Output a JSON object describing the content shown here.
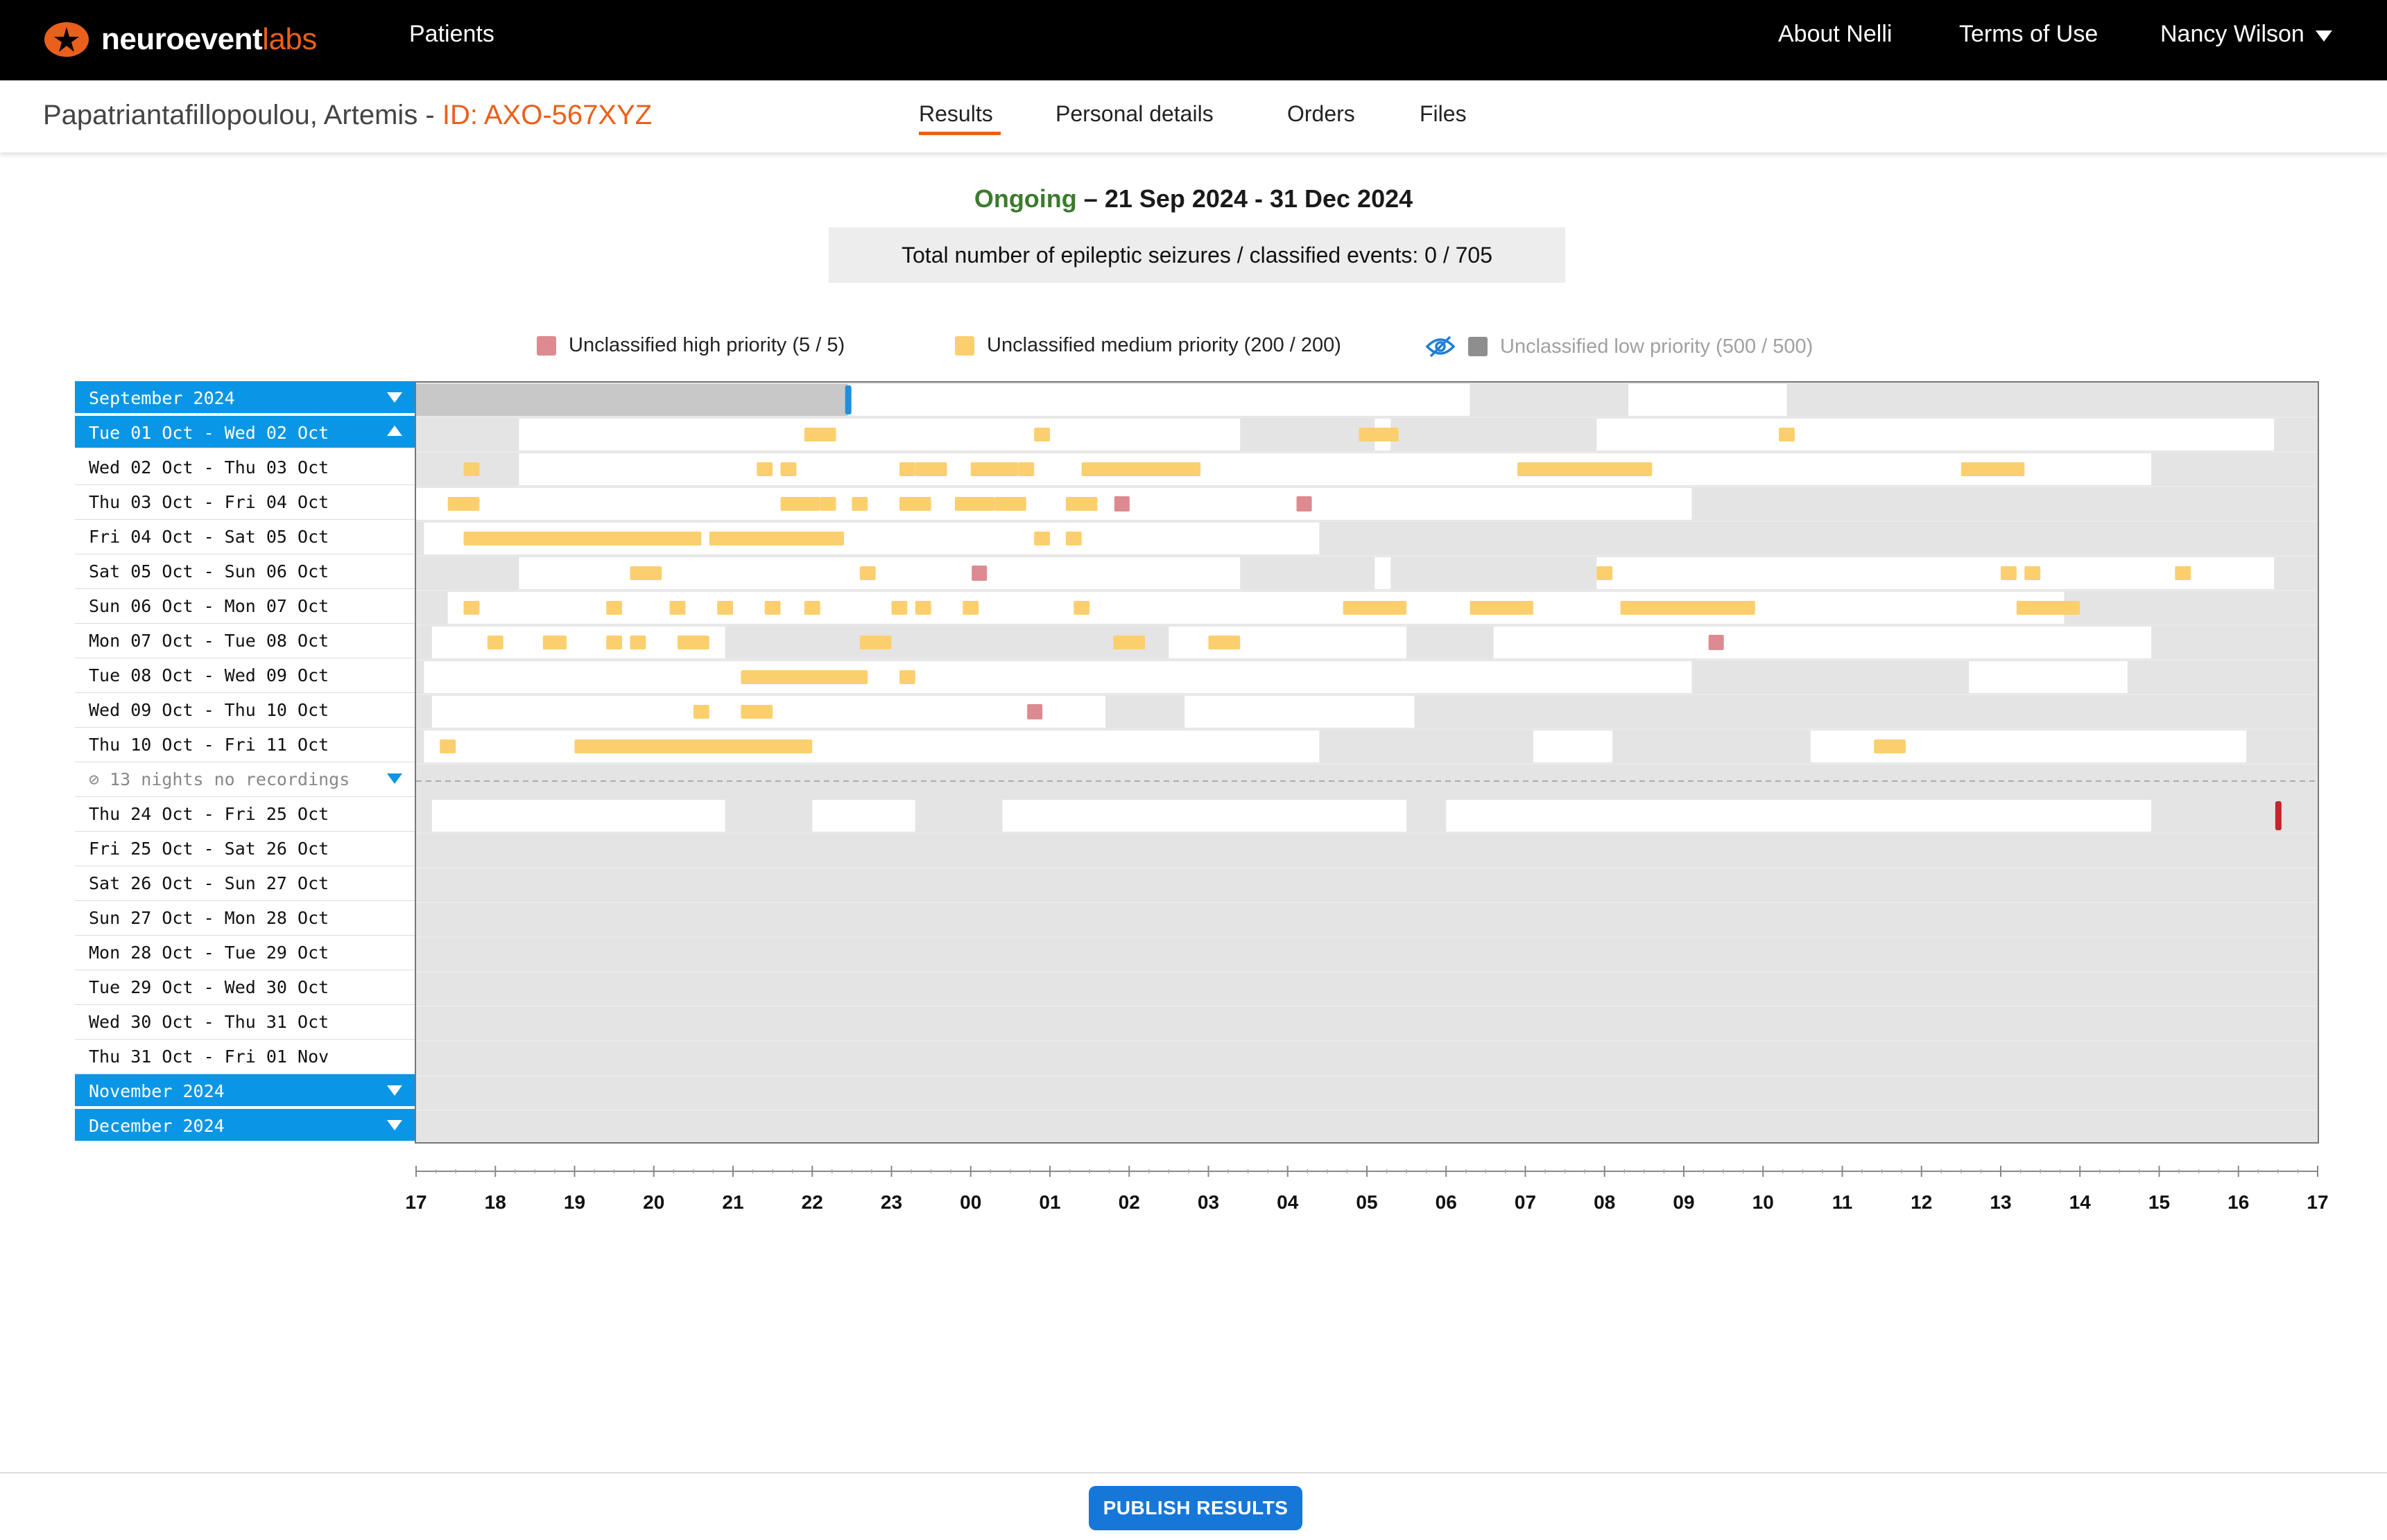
{
  "app": {
    "logo_main": "neuroevent",
    "logo_accent": "labs",
    "nav": {
      "patients": "Patients",
      "about": "About Nelli",
      "terms": "Terms of Use",
      "user": "Nancy Wilson"
    }
  },
  "patient": {
    "name": "Papatriantafillopoulou, Artemis - ",
    "id_label": "ID: AXO-567XYZ"
  },
  "tabs": {
    "results": "Results",
    "personal": "Personal details",
    "orders": "Orders",
    "files": "Files",
    "active": "Results"
  },
  "summary": {
    "status": "Ongoing",
    "date_range": " – 21 Sep 2024 - 31 Dec 2024",
    "totals": "Total number of epileptic seizures / classified events:  0 / 705"
  },
  "legend": {
    "high": "Unclassified high priority (5 / 5)",
    "medium": "Unclassified medium priority (200 / 200)",
    "low": "Unclassified low priority (500 / 500)",
    "low_hidden": true,
    "colors": {
      "high": "#dd8a90",
      "medium": "#fccf6e",
      "low": "#8e8e8e",
      "recorded": "#ffffff",
      "no_recording": "#e4e4e4",
      "month_header": "#0a96e6",
      "marker": "#c0282d"
    }
  },
  "timeline": {
    "rows": [
      {
        "label": "September 2024",
        "kind": "month",
        "expanded": false
      },
      {
        "label": "Tue 01 Oct - Wed 02 Oct",
        "kind": "header-expanded"
      },
      {
        "label": "Wed 02 Oct - Thu 03 Oct",
        "kind": "day"
      },
      {
        "label": "Thu 03 Oct - Fri 04 Oct",
        "kind": "day"
      },
      {
        "label": "Fri 04 Oct - Sat 05 Oct",
        "kind": "day"
      },
      {
        "label": "Sat 05 Oct - Sun 06 Oct",
        "kind": "day"
      },
      {
        "label": "Sun 06 Oct - Mon 07 Oct",
        "kind": "day"
      },
      {
        "label": "Mon 07 Oct - Tue 08 Oct",
        "kind": "day"
      },
      {
        "label": "Tue 08 Oct - Wed 09 Oct",
        "kind": "day"
      },
      {
        "label": "Wed 09 Oct - Thu 10 Oct",
        "kind": "day"
      },
      {
        "label": "Thu 10 Oct - Fri 11 Oct",
        "kind": "day"
      },
      {
        "label": "13 nights no recordings",
        "kind": "gap"
      },
      {
        "label": "Thu 24 Oct - Fri 25 Oct",
        "kind": "day"
      },
      {
        "label": "Fri 25 Oct - Sat 26 Oct",
        "kind": "day"
      },
      {
        "label": "Sat 26 Oct - Sun 27 Oct",
        "kind": "day"
      },
      {
        "label": "Sun 27 Oct - Mon 28 Oct",
        "kind": "day"
      },
      {
        "label": "Mon 28 Oct - Tue 29 Oct",
        "kind": "day"
      },
      {
        "label": "Tue 29 Oct - Wed 30 Oct",
        "kind": "day"
      },
      {
        "label": "Wed 30 Oct - Thu 31 Oct",
        "kind": "day"
      },
      {
        "label": "Thu 31 Oct - Fri 01 Nov",
        "kind": "day"
      },
      {
        "label": "November 2024",
        "kind": "month",
        "expanded": false
      },
      {
        "label": "December 2024",
        "kind": "month",
        "expanded": false
      }
    ],
    "hour_ticks": [
      "17",
      "18",
      "19",
      "20",
      "21",
      "22",
      "23",
      "00",
      "01",
      "02",
      "03",
      "04",
      "05",
      "06",
      "07",
      "08",
      "09",
      "10",
      "11",
      "12",
      "13",
      "14",
      "15",
      "16",
      "17"
    ],
    "recordings": [
      {
        "row": 0,
        "spans": [
          [
            17.0,
            22.45
          ],
          [
            22.45,
            30.3
          ],
          [
            32.3,
            34.3
          ]
        ],
        "greyfirst": true
      },
      {
        "row": 1,
        "spans": [
          [
            18.3,
            27.4
          ],
          [
            29.1,
            29.3
          ],
          [
            31.9,
            40.45
          ]
        ]
      },
      {
        "row": 2,
        "spans": [
          [
            18.3,
            38.9
          ]
        ]
      },
      {
        "row": 3,
        "spans": [
          [
            17.0,
            33.1
          ]
        ]
      },
      {
        "row": 4,
        "spans": [
          [
            17.1,
            28.4
          ]
        ]
      },
      {
        "row": 5,
        "spans": [
          [
            18.3,
            27.4
          ],
          [
            29.1,
            29.3
          ],
          [
            31.9,
            40.45
          ]
        ]
      },
      {
        "row": 6,
        "spans": [
          [
            17.4,
            37.8
          ]
        ]
      },
      {
        "row": 7,
        "spans": [
          [
            17.2,
            20.9
          ],
          [
            26.5,
            29.5
          ],
          [
            30.6,
            38.9
          ]
        ]
      },
      {
        "row": 8,
        "spans": [
          [
            17.1,
            33.1
          ],
          [
            36.6,
            38.6
          ]
        ]
      },
      {
        "row": 9,
        "spans": [
          [
            17.2,
            25.7
          ],
          [
            26.7,
            29.6
          ]
        ]
      },
      {
        "row": 10,
        "spans": [
          [
            17.1,
            28.4
          ],
          [
            31.1,
            32.1
          ],
          [
            34.6,
            40.1
          ]
        ]
      },
      {
        "row": 12,
        "spans": [
          [
            17.2,
            20.9
          ],
          [
            22.0,
            23.3
          ],
          [
            24.4,
            29.5
          ],
          [
            30.0,
            38.9
          ]
        ]
      }
    ],
    "events_medium": [
      {
        "row": 1,
        "t": [
          [
            21.9,
            22.3
          ],
          [
            24.8,
            25.0
          ],
          [
            28.9,
            29.3
          ],
          [
            29.2,
            29.4
          ],
          [
            34.2,
            34.4
          ]
        ]
      },
      {
        "row": 2,
        "t": [
          [
            17.6,
            17.8
          ],
          [
            21.3,
            21.5
          ],
          [
            21.6,
            21.8
          ],
          [
            23.1,
            23.3
          ],
          [
            23.3,
            23.7
          ],
          [
            24.0,
            24.6
          ],
          [
            24.6,
            24.8
          ],
          [
            25.4,
            26.9
          ],
          [
            30.9,
            32.6
          ],
          [
            36.5,
            37.3
          ]
        ]
      },
      {
        "row": 3,
        "t": [
          [
            17.4,
            17.8
          ],
          [
            21.6,
            22.1
          ],
          [
            22.1,
            22.3
          ],
          [
            22.5,
            22.7
          ],
          [
            23.1,
            23.5
          ],
          [
            23.8,
            24.3
          ],
          [
            24.3,
            24.7
          ],
          [
            25.2,
            25.6
          ]
        ]
      },
      {
        "row": 4,
        "t": [
          [
            17.6,
            20.6
          ],
          [
            20.7,
            22.4
          ],
          [
            24.8,
            25.0
          ],
          [
            25.2,
            25.4
          ]
        ]
      },
      {
        "row": 5,
        "t": [
          [
            19.7,
            20.1
          ],
          [
            22.6,
            22.8
          ],
          [
            31.9,
            32.1
          ],
          [
            37.0,
            37.2
          ],
          [
            37.3,
            37.5
          ],
          [
            39.2,
            39.4
          ]
        ]
      },
      {
        "row": 6,
        "t": [
          [
            17.6,
            17.8
          ],
          [
            19.4,
            19.6
          ],
          [
            20.2,
            20.4
          ],
          [
            20.8,
            21.0
          ],
          [
            21.4,
            21.6
          ],
          [
            21.9,
            22.1
          ],
          [
            23.0,
            23.2
          ],
          [
            23.3,
            23.5
          ],
          [
            23.9,
            24.1
          ],
          [
            25.3,
            25.5
          ],
          [
            28.7,
            29.5
          ],
          [
            30.3,
            31.1
          ],
          [
            32.2,
            33.9
          ],
          [
            37.2,
            38.0
          ]
        ]
      },
      {
        "row": 7,
        "t": [
          [
            17.9,
            18.1
          ],
          [
            18.6,
            18.9
          ],
          [
            19.4,
            19.6
          ],
          [
            19.7,
            19.9
          ],
          [
            20.3,
            20.7
          ],
          [
            22.6,
            23.0
          ],
          [
            25.8,
            26.2
          ],
          [
            27.0,
            27.4
          ]
        ]
      },
      {
        "row": 8,
        "t": [
          [
            21.1,
            22.7
          ],
          [
            23.1,
            23.3
          ]
        ]
      },
      {
        "row": 9,
        "t": [
          [
            20.5,
            20.7
          ],
          [
            21.1,
            21.5
          ]
        ]
      },
      {
        "row": 10,
        "t": [
          [
            17.3,
            17.5
          ],
          [
            19.0,
            22.0
          ],
          [
            35.4,
            35.8
          ]
        ]
      }
    ],
    "events_high": [
      {
        "row": 3,
        "t": 25.9
      },
      {
        "row": 3,
        "t": 28.2
      },
      {
        "row": 5,
        "t": 24.1
      },
      {
        "row": 7,
        "t": 33.4
      },
      {
        "row": 9,
        "t": 24.8
      }
    ],
    "markers": [
      {
        "row": 0,
        "t": 22.45,
        "color": "#1e90e0"
      },
      {
        "row": 12,
        "t": 40.5,
        "color": "#c0282d"
      }
    ]
  },
  "actions": {
    "publish": "PUBLISH RESULTS"
  }
}
